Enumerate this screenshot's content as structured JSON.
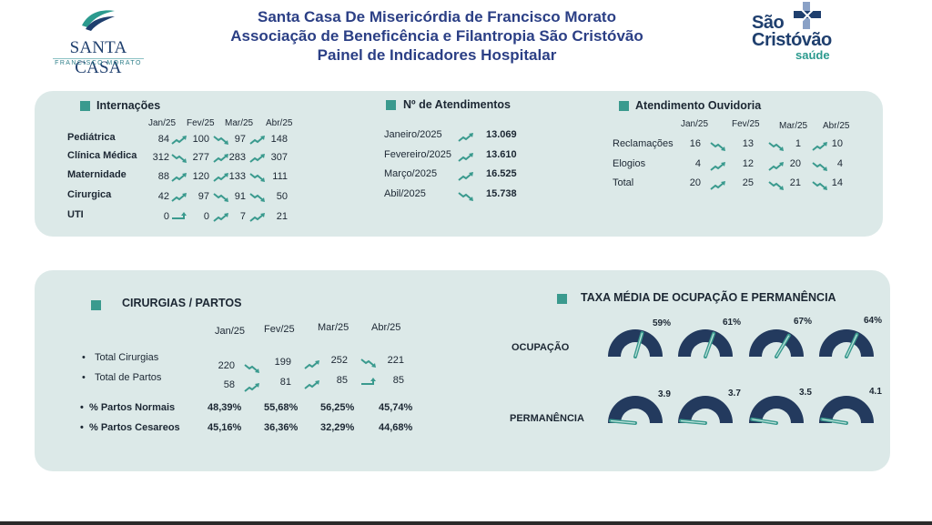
{
  "header": {
    "left_logo": {
      "name": "SANTA CASA",
      "sub": "FRANCISCO MORATO"
    },
    "title_1": "Santa Casa De Misericórdia de Francisco Morato",
    "title_2": "Associação de Beneficência e Filantropia São Cristóvão",
    "title_3": "Painel de Indicadores Hospitalar",
    "right_logo": {
      "line1": "São",
      "line2": "Cristóvão",
      "line3": "saúde"
    }
  },
  "colors": {
    "accent": "#3a9a8e",
    "gauge": "#233a5e",
    "panel": "#dce9e8",
    "title": "#2b3f85"
  },
  "internacoes": {
    "title": "Internações",
    "months": [
      "Jan/25",
      "Fev/25",
      "Mar/25",
      "Abr/25"
    ],
    "rows": [
      {
        "label": "Pediátrica",
        "values": [
          "84",
          "100",
          "97",
          "148"
        ],
        "trends": [
          "up",
          "down",
          "up"
        ]
      },
      {
        "label": "Clínica Médica",
        "values": [
          "312",
          "277",
          "283",
          "307"
        ],
        "trends": [
          "down",
          "up",
          "up"
        ]
      },
      {
        "label": "Maternidade",
        "values": [
          "88",
          "120",
          "133",
          "111"
        ],
        "trends": [
          "up",
          "up",
          "down"
        ]
      },
      {
        "label": "Cirurgica",
        "values": [
          "42",
          "97",
          "91",
          "50"
        ],
        "trends": [
          "up",
          "down",
          "down"
        ]
      },
      {
        "label": "UTI",
        "values": [
          "0",
          "0",
          "7",
          "21"
        ],
        "trends": [
          "flat",
          "up",
          "up"
        ]
      }
    ]
  },
  "atendimentos": {
    "title": "Nº de Atendimentos",
    "rows": [
      {
        "label": "Janeiro/2025",
        "value": "13.069",
        "trend": "up"
      },
      {
        "label": "Fevereiro/2025",
        "value": "13.610",
        "trend": "up"
      },
      {
        "label": "Março/2025",
        "value": "16.525",
        "trend": "up"
      },
      {
        "label": "Abil/2025",
        "value": "15.738",
        "trend": "down"
      }
    ]
  },
  "ouvidoria": {
    "title": "Atendimento Ouvidoria",
    "months": [
      "Jan/25",
      "Fev/25",
      "Mar/25",
      "Abr/25"
    ],
    "rows": [
      {
        "label": "Reclamações",
        "values": [
          "16",
          "13",
          "1",
          "10"
        ],
        "trends": [
          "down",
          "down",
          "up"
        ]
      },
      {
        "label": "Elogios",
        "values": [
          "4",
          "12",
          "20",
          "4"
        ],
        "trends": [
          "up",
          "up",
          "down"
        ]
      },
      {
        "label": "Total",
        "values": [
          "20",
          "25",
          "21",
          "14"
        ],
        "trends": [
          "up",
          "down",
          "down"
        ]
      }
    ]
  },
  "cirurgias": {
    "title": "CIRURGIAS / PARTOS",
    "months": [
      "Jan/25",
      "Fev/25",
      "Mar/25",
      "Abr/25"
    ],
    "bullets": [
      {
        "label": "Total Cirurgias",
        "values": [
          "220",
          "199",
          "252",
          "221"
        ],
        "trends": [
          "down",
          "up",
          "down"
        ]
      },
      {
        "label": "Total de Partos",
        "values": [
          "58",
          "81",
          "85",
          "85"
        ],
        "trends": [
          "up",
          "up",
          "flat"
        ]
      }
    ],
    "pct_rows": [
      {
        "label": "% Partos Normais",
        "values": [
          "48,39%",
          "55,68%",
          "56,25%",
          "45,74%"
        ]
      },
      {
        "label": "% Partos Cesareos",
        "values": [
          "45,16%",
          "36,36%",
          "32,29%",
          "44,68%"
        ]
      }
    ]
  },
  "taxa": {
    "title": "TAXA MÉDIA DE OCUPAÇÃO E PERMANÊNCIA",
    "ocupacao": {
      "label": "OCUPAÇÃO",
      "values": [
        "59%",
        "61%",
        "67%",
        "64%"
      ],
      "levels": [
        0.59,
        0.61,
        0.67,
        0.64
      ]
    },
    "permanencia": {
      "label": "PERMANÊNCIA",
      "values": [
        "3.9",
        "3.7",
        "3.5",
        "4.1"
      ],
      "levels": [
        0.03,
        0.03,
        0.05,
        0.05
      ]
    }
  }
}
